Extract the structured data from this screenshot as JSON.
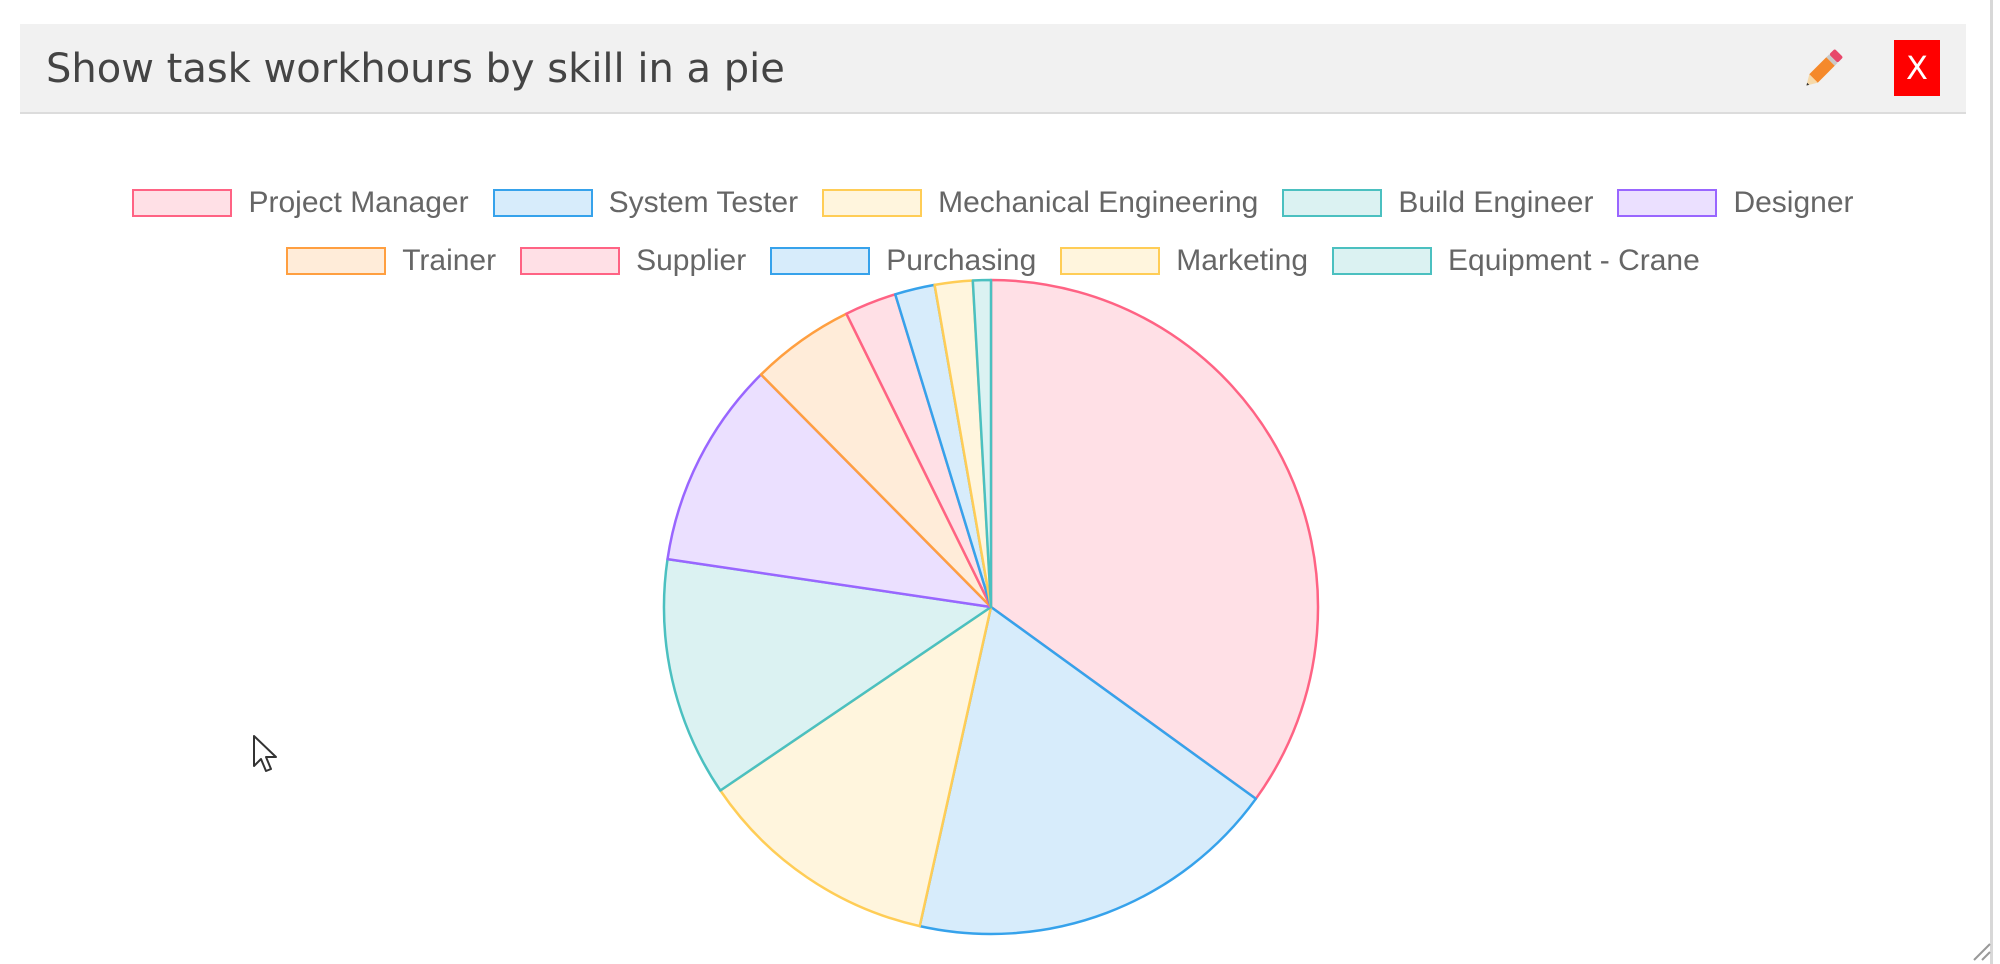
{
  "window": {
    "title": "Show task workhours by skill in a pie",
    "edit_icon": "pencil-icon",
    "close_label": "X"
  },
  "colors": {
    "titlebar_bg": "#f1f1f1",
    "close_bg": "#ff0000"
  },
  "chart_data": {
    "type": "pie",
    "title": "",
    "legend_position": "top",
    "categories": [
      "Project Manager",
      "System Tester",
      "Mechanical Engineering",
      "Build Engineer",
      "Designer",
      "Trainer",
      "Supplier",
      "Purchasing",
      "Marketing",
      "Equipment - Crane"
    ],
    "values": [
      35.5,
      18.8,
      12.2,
      12.0,
      10.4,
      5.2,
      2.6,
      2.0,
      1.9,
      0.9
    ],
    "fill_colors": [
      "#ffe0e6",
      "#d7ecfb",
      "#fff5dd",
      "#dbf2f2",
      "#ebe0ff",
      "#ffecd9",
      "#ffe0e6",
      "#d7ecfb",
      "#fff5dd",
      "#dbf2f2"
    ],
    "border_colors": [
      "#ff6384",
      "#36a2eb",
      "#ffcd56",
      "#4bc0c0",
      "#9966ff",
      "#ff9f40",
      "#ff6384",
      "#36a2eb",
      "#ffcd56",
      "#4bc0c0"
    ]
  }
}
